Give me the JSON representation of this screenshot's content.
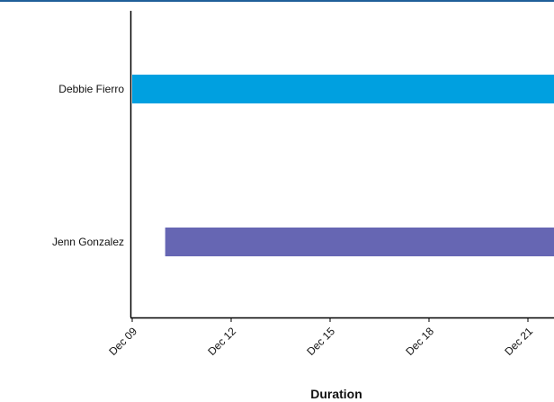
{
  "chart_data": {
    "type": "bar",
    "orientation": "horizontal",
    "xlabel": "Duration",
    "ylabel": "",
    "title": "",
    "x_axis_kind": "date",
    "xlim": [
      "2008-12-09",
      "2008-12-24"
    ],
    "x_ticks": [
      {
        "date": "2008-12-09",
        "label": "Dec 09"
      },
      {
        "date": "2008-12-12",
        "label": "Dec 12"
      },
      {
        "date": "2008-12-15",
        "label": "Dec 15"
      },
      {
        "date": "2008-12-18",
        "label": "Dec 18"
      },
      {
        "date": "2008-12-21",
        "label": "Dec 21"
      }
    ],
    "categories": [
      "Debbie Fierro",
      "Jenn Gonzalez"
    ],
    "series": [
      {
        "category": "Debbie Fierro",
        "start": "2008-12-09",
        "end": "2008-12-24",
        "color": "#00a0e0"
      },
      {
        "category": "Jenn Gonzalez",
        "start": "2008-12-10",
        "end": "2008-12-24",
        "color": "#6666b3"
      }
    ],
    "grid": false,
    "legend": "none"
  }
}
